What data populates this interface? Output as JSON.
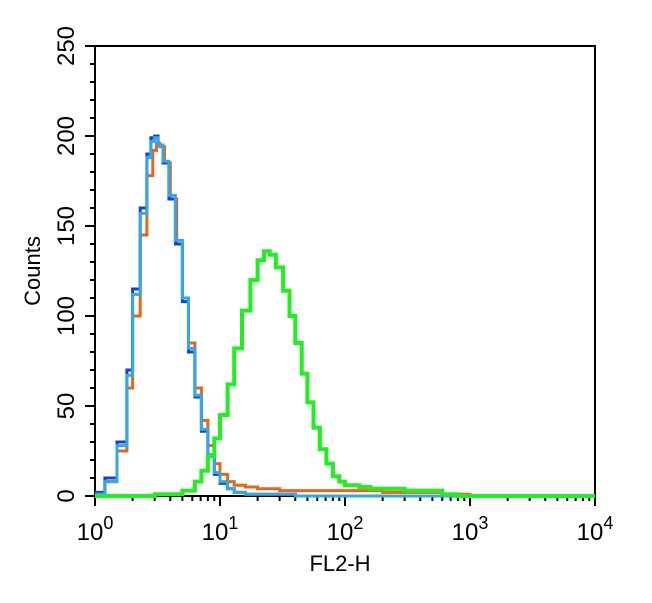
{
  "chart_data": {
    "type": "line",
    "xlabel": "FL2-H",
    "ylabel": "Counts",
    "x_scale": "log",
    "xlim": [
      1,
      10000
    ],
    "ylim": [
      0,
      250
    ],
    "grid": false,
    "x_ticks": [
      {
        "value": 1,
        "base": "10",
        "exp": "0"
      },
      {
        "value": 10,
        "base": "10",
        "exp": "1"
      },
      {
        "value": 100,
        "base": "10",
        "exp": "2"
      },
      {
        "value": 1000,
        "base": "10",
        "exp": "3"
      },
      {
        "value": 10000,
        "base": "10",
        "exp": "4"
      }
    ],
    "y_ticks": [
      0,
      50,
      100,
      150,
      200,
      250
    ],
    "series": [
      {
        "color": "#e8651a",
        "x": [
          1.0,
          1.2,
          1.5,
          1.8,
          2.0,
          2.3,
          2.6,
          2.9,
          3.1,
          3.3,
          3.6,
          4.0,
          4.5,
          5.0,
          5.6,
          6.3,
          7.1,
          8.0,
          9.0,
          10,
          11.5,
          13,
          16,
          20,
          30,
          50,
          100,
          200,
          400,
          600,
          1000,
          10000
        ],
        "y": [
          2,
          8,
          25,
          60,
          100,
          145,
          178,
          192,
          196,
          194,
          185,
          165,
          140,
          110,
          85,
          60,
          42,
          28,
          18,
          12,
          8,
          6,
          5,
          4,
          3,
          3,
          3,
          2,
          2,
          1,
          0,
          0
        ]
      },
      {
        "color": "#1a3fd6",
        "x": [
          1.0,
          1.2,
          1.5,
          1.8,
          2.0,
          2.3,
          2.6,
          2.8,
          3.0,
          3.2,
          3.5,
          3.9,
          4.4,
          5.0,
          5.6,
          6.3,
          7.1,
          8.0,
          9.0,
          10,
          11.5,
          13,
          16,
          20,
          40,
          100,
          10000
        ],
        "y": [
          2,
          10,
          30,
          70,
          115,
          160,
          190,
          199,
          200,
          195,
          185,
          165,
          140,
          108,
          80,
          55,
          36,
          22,
          12,
          7,
          4,
          2,
          1,
          1,
          0,
          0,
          0
        ]
      },
      {
        "color": "#33a9df",
        "x": [
          1.0,
          1.2,
          1.5,
          1.8,
          2.0,
          2.3,
          2.6,
          2.8,
          3.0,
          3.2,
          3.5,
          3.9,
          4.4,
          5.0,
          5.6,
          6.3,
          7.1,
          8.0,
          9.0,
          10,
          11.5,
          13,
          16,
          20,
          40,
          100,
          10000
        ],
        "y": [
          1,
          8,
          28,
          67,
          112,
          157,
          188,
          197,
          199,
          195,
          186,
          167,
          142,
          110,
          82,
          56,
          37,
          23,
          13,
          8,
          4,
          2,
          1,
          1,
          0,
          0,
          0
        ]
      },
      {
        "color": "#22ee22",
        "x": [
          1.0,
          3.0,
          5.0,
          6.3,
          7.1,
          8.0,
          9.0,
          10,
          11.5,
          13,
          15,
          17.5,
          20,
          22.5,
          25,
          28,
          32,
          36,
          40,
          45,
          50,
          56,
          63,
          71,
          80,
          90,
          100,
          130,
          160,
          200,
          300,
          500,
          600,
          800,
          1000,
          10000
        ],
        "y": [
          0,
          1,
          3,
          8,
          14,
          22,
          32,
          45,
          62,
          82,
          103,
          120,
          131,
          136,
          134,
          127,
          114,
          100,
          85,
          68,
          52,
          38,
          26,
          18,
          11,
          8,
          6,
          5,
          4,
          4,
          3,
          3,
          1,
          0,
          0,
          0
        ]
      }
    ]
  }
}
